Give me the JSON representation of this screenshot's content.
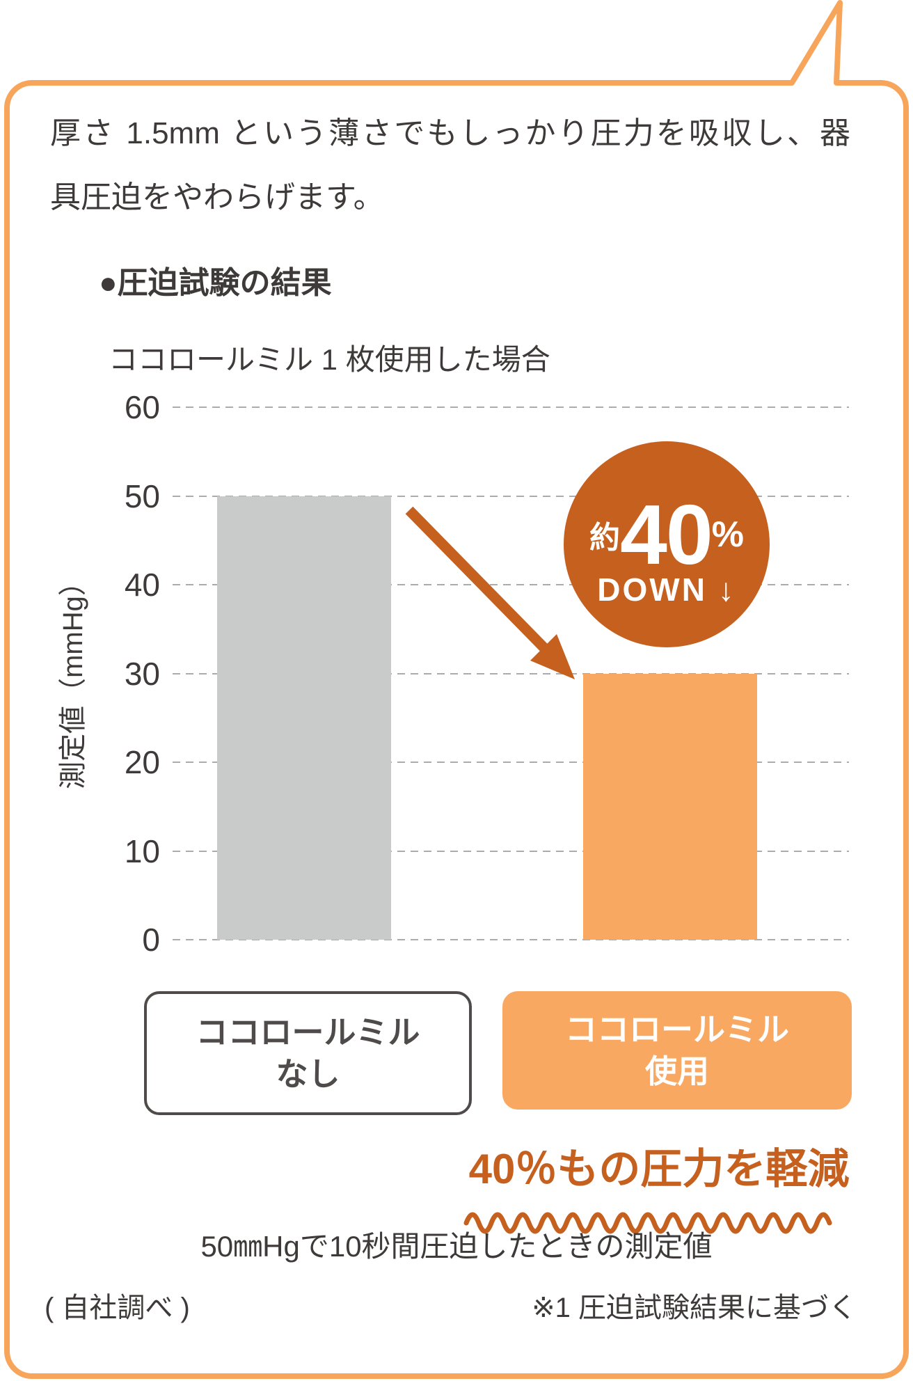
{
  "card": {
    "intro_line1": "厚さ 1.5mm という薄さでもしっかり圧力を吸収し、器",
    "intro_line2": "具圧迫をやわらげます。",
    "section_heading": "●圧迫試験の結果",
    "section_subheading": "ココロールミル 1 枚使用した場合",
    "highlight": "40％もの圧力を軽減",
    "measurement_note": "50㎜Hgで10秒間圧迫したときの測定値",
    "footer_left": "( 自社調べ )",
    "footer_right": "※1 圧迫試験結果に基づく"
  },
  "chart_data": {
    "type": "bar",
    "title": "圧迫試験の結果",
    "subtitle": "ココロールミル 1 枚使用した場合",
    "ylabel": "測定値（mmHg）",
    "ylim": [
      0,
      60
    ],
    "yticks": [
      0,
      10,
      20,
      30,
      40,
      50,
      60
    ],
    "grid": "horizontal-dashed",
    "categories": [
      "ココロールミル なし",
      "ココロールミル 使用"
    ],
    "category_lines": [
      [
        "ココロールミル",
        "なし"
      ],
      [
        "ココロールミル",
        "使用"
      ]
    ],
    "values": [
      50,
      30
    ],
    "bar_colors": [
      "#C9CACA",
      "#F9A862"
    ],
    "unit": "mmHg",
    "annotation": "約40% DOWN ↓"
  },
  "badge": {
    "prefix": "約",
    "value": "40",
    "unit": "%",
    "line2": "DOWN ↓"
  },
  "colors": {
    "dark_orange": "#C5601E",
    "light_orange": "#F9A862",
    "border_orange": "#F8A55C",
    "bar_gray": "#C9CACA",
    "text_dark": "#3E3A39",
    "box_border_gray": "#4E4B4A",
    "gridline_gray": "#ABABAB",
    "badge_text": "#FFFFFF"
  }
}
